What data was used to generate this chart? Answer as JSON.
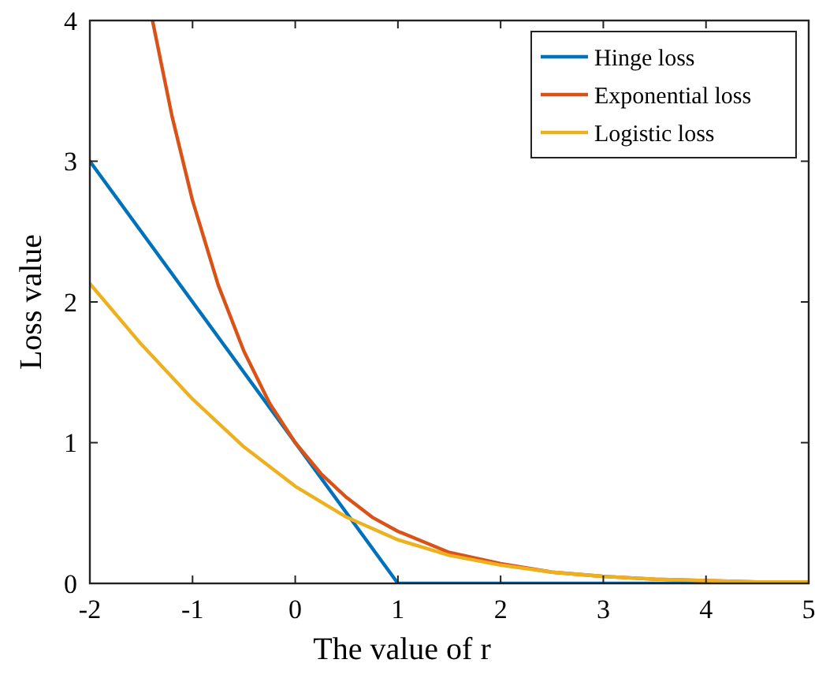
{
  "chart_data": {
    "type": "line",
    "xlabel": "The value of r",
    "ylabel": "Loss value",
    "xlim": [
      -2,
      5
    ],
    "ylim": [
      0,
      4
    ],
    "xticks": [
      -2,
      -1,
      0,
      1,
      2,
      3,
      4,
      5
    ],
    "yticks": [
      0,
      1,
      2,
      3,
      4
    ],
    "legend": "top right",
    "grid": false,
    "marker": "none",
    "line_style": "solid",
    "series": [
      {
        "name": "Hinge loss",
        "color": "#0072bd",
        "x": [
          -2,
          1,
          5
        ],
        "values": [
          3,
          0,
          0
        ]
      },
      {
        "name": "Exponential loss",
        "color": "#d95319",
        "x": [
          -1.39,
          -1.2,
          -1,
          -0.75,
          -0.5,
          -0.25,
          0,
          0.25,
          0.5,
          0.75,
          1,
          1.5,
          2,
          2.5,
          3,
          3.5,
          4,
          4.5,
          5
        ],
        "values": [
          4,
          3.32,
          2.72,
          2.12,
          1.65,
          1.28,
          1,
          0.78,
          0.61,
          0.47,
          0.37,
          0.22,
          0.14,
          0.08,
          0.05,
          0.03,
          0.02,
          0.01,
          0.01
        ]
      },
      {
        "name": "Logistic loss",
        "color": "#edb120",
        "x": [
          -2,
          -1.5,
          -1,
          -0.5,
          0,
          0.5,
          1,
          1.5,
          2,
          2.5,
          3,
          3.5,
          4,
          4.5,
          5
        ],
        "values": [
          2.13,
          1.7,
          1.31,
          0.97,
          0.69,
          0.47,
          0.31,
          0.2,
          0.13,
          0.08,
          0.05,
          0.03,
          0.02,
          0.01,
          0.01
        ]
      }
    ]
  }
}
